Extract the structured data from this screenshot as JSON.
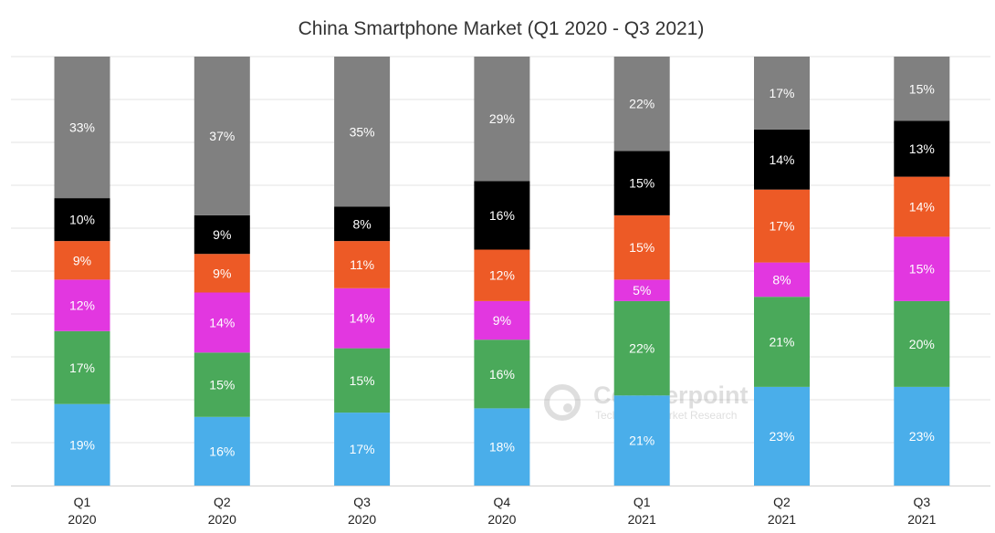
{
  "chart_data": {
    "type": "bar",
    "stacked": true,
    "percent_stacked": true,
    "title": "China Smartphone Market (Q1 2020 - Q3 2021)",
    "xlabel": "",
    "ylabel": "",
    "ylim": [
      0,
      100
    ],
    "grid": true,
    "legend": "none",
    "categories": [
      [
        "Q1",
        "2020"
      ],
      [
        "Q2",
        "2020"
      ],
      [
        "Q3",
        "2020"
      ],
      [
        "Q4",
        "2020"
      ],
      [
        "Q1",
        "2021"
      ],
      [
        "Q2",
        "2021"
      ],
      [
        "Q3",
        "2021"
      ]
    ],
    "series": [
      {
        "name": "blue segment",
        "color": "#4aaeea",
        "values": [
          19,
          16,
          17,
          18,
          21,
          23,
          23
        ]
      },
      {
        "name": "green segment",
        "color": "#4aa95a",
        "values": [
          17,
          15,
          15,
          16,
          22,
          21,
          20
        ]
      },
      {
        "name": "magenta segment",
        "color": "#e237e0",
        "values": [
          12,
          14,
          14,
          9,
          5,
          8,
          15
        ]
      },
      {
        "name": "orange segment",
        "color": "#ed5a26",
        "values": [
          9,
          9,
          11,
          12,
          15,
          17,
          14
        ]
      },
      {
        "name": "black segment",
        "color": "#000000",
        "values": [
          10,
          9,
          8,
          16,
          15,
          14,
          13
        ]
      },
      {
        "name": "grey segment",
        "color": "#808080",
        "values": [
          33,
          37,
          35,
          29,
          22,
          17,
          15
        ]
      }
    ],
    "watermark": {
      "name": "Counterpoint",
      "subtitle": "Technology Market Research"
    }
  }
}
